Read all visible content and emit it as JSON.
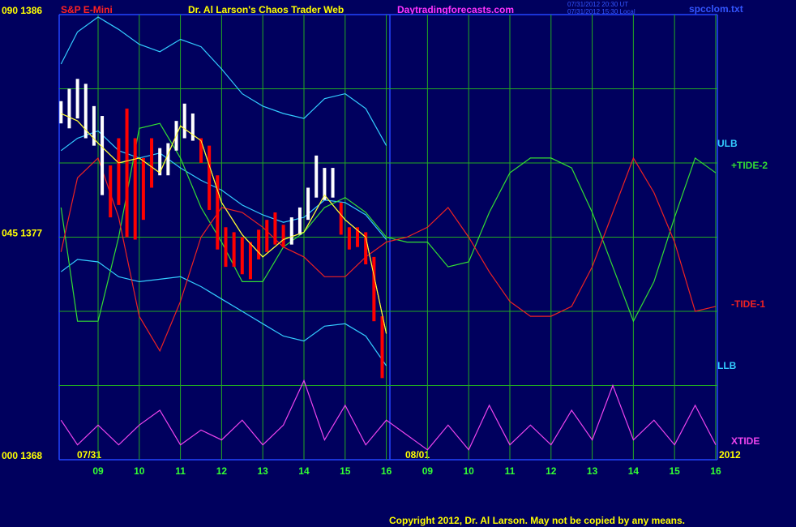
{
  "chart_data": {
    "type": "chaos",
    "header": {
      "instrument": "S&P E-Mini",
      "title": "Dr. Al Larson's Chaos Trader Web",
      "site": "Daytradingforecasts.com",
      "time_ut": "07/31/2012 20:30 UT",
      "time_local": "07/31/2012 15:30 Local",
      "file": "spcclom.txt"
    },
    "copyright": "Copyright 2012, Dr. Al Larson. May not be copied by any means.",
    "dates": [
      "07/31",
      "08/01",
      "2012"
    ],
    "xlim": [
      -0.945,
      15.04
    ],
    "xticks": [
      {
        "value": 0,
        "label": "09"
      },
      {
        "value": 1,
        "label": "10"
      },
      {
        "value": 2,
        "label": "11"
      },
      {
        "value": 3,
        "label": "12"
      },
      {
        "value": 4,
        "label": "13"
      },
      {
        "value": 5,
        "label": "14"
      },
      {
        "value": 6,
        "label": "15"
      },
      {
        "value": 7,
        "label": "16"
      },
      {
        "value": 8,
        "label": "09"
      },
      {
        "value": 9,
        "label": "10"
      },
      {
        "value": 10,
        "label": "11"
      },
      {
        "value": 11,
        "label": "12"
      },
      {
        "value": 12,
        "label": "13"
      },
      {
        "value": 13,
        "label": "14"
      },
      {
        "value": 14,
        "label": "15"
      },
      {
        "value": 15,
        "label": "16"
      }
    ],
    "ylim": [
      1368,
      1386
    ],
    "yticks": [
      {
        "value": 1386,
        "label": "090 1386"
      },
      {
        "value": 1377,
        "label": "045 1377"
      },
      {
        "value": 1368,
        "label": "000 1368"
      }
    ],
    "ygrid": [
      1371,
      1374,
      1380,
      1383
    ],
    "y2lim": [
      0,
      90
    ],
    "price": {
      "x": [
        -0.9,
        -0.7,
        -0.5,
        -0.3,
        -0.1,
        0.1,
        0.3,
        0.5,
        0.7,
        0.9,
        1.1,
        1.3,
        1.5,
        1.7,
        1.9,
        2.1,
        2.3,
        2.5,
        2.7,
        2.9,
        3.1,
        3.3,
        3.5,
        3.7,
        3.9,
        4.1,
        4.3,
        4.5,
        4.7,
        4.9,
        5.1,
        5.3,
        5.5,
        5.7,
        5.9,
        6.1,
        6.3,
        6.5,
        6.7,
        6.9
      ],
      "high": [
        1382.5,
        1383.0,
        1383.4,
        1383.2,
        1382.3,
        1381.9,
        1379.9,
        1381.0,
        1382.2,
        1381.0,
        1380.2,
        1381.0,
        1380.6,
        1380.8,
        1381.7,
        1382.4,
        1382.0,
        1381.0,
        1380.7,
        1379.5,
        1377.4,
        1377.2,
        1377.0,
        1376.8,
        1377.3,
        1377.7,
        1378.0,
        1377.5,
        1377.8,
        1378.2,
        1379.0,
        1380.3,
        1379.8,
        1379.8,
        1378.4,
        1377.4,
        1377.4,
        1377.2,
        1376.2,
        1373.8
      ],
      "low": [
        1381.6,
        1381.4,
        1381.8,
        1381.0,
        1380.7,
        1378.7,
        1377.8,
        1378.3,
        1377.0,
        1376.9,
        1377.7,
        1379.0,
        1379.5,
        1379.5,
        1380.5,
        1381.0,
        1380.9,
        1380.0,
        1378.1,
        1376.5,
        1375.8,
        1375.8,
        1375.5,
        1375.3,
        1376.1,
        1376.4,
        1376.7,
        1376.6,
        1376.7,
        1377.1,
        1377.7,
        1378.6,
        1378.5,
        1378.6,
        1377.1,
        1376.5,
        1376.6,
        1375.9,
        1373.6,
        1371.3
      ],
      "colors": [
        "#ffffff",
        "#ffffff",
        "#ffffff",
        "#ffffff",
        "#ffffff",
        "#ffffff",
        "#ff0000",
        "#ff0000",
        "#ff0000",
        "#ff0000",
        "#ff0000",
        "#ff0000",
        "#ffffff",
        "#ffffff",
        "#ffffff",
        "#ffffff",
        "#ffffff",
        "#ff0000",
        "#ff0000",
        "#ff0000",
        "#ff0000",
        "#ff0000",
        "#ff0000",
        "#ff0000",
        "#ff0000",
        "#ff0000",
        "#ff0000",
        "#ff0000",
        "#ffffff",
        "#ffffff",
        "#ffffff",
        "#ffffff",
        "#ffffff",
        "#ffffff",
        "#ff0000",
        "#ff0000",
        "#ff0000",
        "#ff0000",
        "#ff0000",
        "#ff0000"
      ]
    },
    "series": [
      {
        "name": "ULB",
        "color": "#33ccff",
        "x": [
          -0.9,
          -0.5,
          0,
          0.5,
          1,
          1.5,
          2,
          2.5,
          3,
          3.5,
          4,
          4.5,
          5,
          5.5,
          6,
          6.5,
          7
        ],
        "values": [
          1384.0,
          1385.3,
          1385.9,
          1385.4,
          1384.8,
          1384.5,
          1385.0,
          1384.7,
          1383.8,
          1382.8,
          1382.3,
          1382.0,
          1381.8,
          1382.6,
          1382.8,
          1382.2,
          1380.7
        ]
      },
      {
        "name": "LLB",
        "color": "#33ccff",
        "x": [
          -0.9,
          -0.5,
          0,
          0.5,
          1,
          1.5,
          2,
          2.5,
          3,
          3.5,
          4,
          4.5,
          5,
          5.5,
          6,
          6.5,
          7
        ],
        "values": [
          1375.6,
          1376.1,
          1376.0,
          1375.4,
          1375.2,
          1375.3,
          1375.4,
          1375.0,
          1374.5,
          1374.0,
          1373.5,
          1373.0,
          1372.8,
          1373.4,
          1373.5,
          1373.0,
          1371.8
        ]
      },
      {
        "color": "#33ccff",
        "x": [
          -0.9,
          -0.5,
          0,
          0.5,
          1,
          1.5,
          2,
          2.5,
          3,
          3.5,
          4,
          4.5,
          5,
          5.5,
          6,
          6.5,
          7
        ],
        "values": [
          1380.5,
          1381.0,
          1381.3,
          1380.5,
          1380.2,
          1380.4,
          1379.8,
          1379.3,
          1378.9,
          1378.3,
          1377.9,
          1377.6,
          1377.8,
          1378.5,
          1378.4,
          1377.9,
          1376.9
        ]
      },
      {
        "color": "#ffff33",
        "x": [
          -0.9,
          -0.5,
          0,
          0.5,
          1,
          1.5,
          2,
          2.5,
          3,
          3.5,
          4,
          4.5,
          5,
          5.5,
          6,
          6.5,
          7
        ],
        "values": [
          1382.0,
          1381.7,
          1380.8,
          1380.0,
          1380.2,
          1379.6,
          1381.5,
          1380.9,
          1378.4,
          1377.1,
          1376.2,
          1376.9,
          1377.2,
          1378.7,
          1377.7,
          1377.0,
          1373.1
        ]
      },
      {
        "name": "+TIDE-2",
        "color": "#33dd33",
        "axis": "y2",
        "x": [
          -0.9,
          -0.5,
          0,
          0.5,
          1,
          1.5,
          2,
          2.5,
          3,
          3.5,
          4,
          4.5,
          5,
          5.5,
          6,
          6.5,
          7,
          7.5,
          8,
          8.5,
          9,
          9.5,
          10,
          10.5,
          11,
          11.5,
          12,
          12.5,
          13,
          13.5,
          14,
          14.5,
          15
        ],
        "values": [
          51,
          28,
          28,
          45,
          67,
          68,
          61,
          51,
          44,
          36,
          36,
          43,
          46,
          51,
          53,
          50,
          45,
          44,
          44,
          39,
          40,
          50,
          58,
          61,
          61,
          59,
          50,
          39,
          28,
          36,
          49,
          61,
          58
        ]
      },
      {
        "name": "-TIDE-1",
        "color": "#ee2222",
        "axis": "y2",
        "x": [
          -0.9,
          -0.5,
          0,
          0.5,
          1,
          1.5,
          2,
          2.5,
          3,
          3.5,
          4,
          4.5,
          5,
          5.5,
          6,
          6.5,
          7,
          7.5,
          8,
          8.5,
          9,
          9.5,
          10,
          10.5,
          11,
          11.5,
          12,
          12.5,
          13,
          13.5,
          14,
          14.5,
          15
        ],
        "values": [
          42,
          57,
          61,
          49,
          29,
          22,
          32,
          45,
          51,
          50,
          47,
          43,
          41,
          37,
          37,
          41,
          44,
          45,
          47,
          51,
          45,
          38,
          32,
          29,
          29,
          31,
          39,
          50,
          61,
          54,
          44,
          30,
          31
        ]
      },
      {
        "name": "XTIDE",
        "color": "#ee44ee",
        "axis": "y2",
        "x": [
          -0.9,
          -0.5,
          0,
          0.5,
          1,
          1.5,
          2,
          2.5,
          3,
          3.5,
          4,
          4.5,
          5,
          5.5,
          6,
          6.5,
          7,
          7.5,
          8,
          8.5,
          9,
          9.5,
          10,
          10.5,
          11,
          11.5,
          12,
          12.5,
          13,
          13.5,
          14,
          14.5,
          15
        ],
        "values": [
          8,
          3,
          7,
          3,
          7,
          10,
          3,
          6,
          4,
          8,
          3,
          7,
          16,
          4,
          11,
          3,
          8,
          5,
          2,
          7,
          2,
          11,
          3,
          7,
          3,
          10,
          4,
          15,
          4,
          8,
          3,
          11,
          3
        ]
      }
    ]
  }
}
